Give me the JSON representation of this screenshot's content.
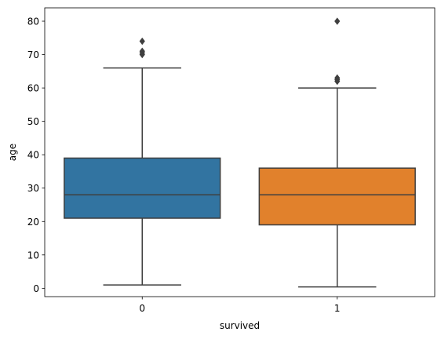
{
  "chart_data": {
    "type": "box",
    "title": "",
    "xlabel": "survived",
    "ylabel": "age",
    "ylim": [
      -2.5,
      84.0
    ],
    "yticks": [
      0,
      10,
      20,
      30,
      40,
      50,
      60,
      70,
      80
    ],
    "grid": false,
    "boxes": [
      {
        "category": "0",
        "color": "#3274a1",
        "whisker_low": 1,
        "q1": 21,
        "median": 28,
        "q3": 39,
        "whisker_high": 66,
        "outliers": [
          70,
          70.5,
          71,
          74
        ]
      },
      {
        "category": "1",
        "color": "#e1812c",
        "whisker_low": 0.42,
        "q1": 19,
        "median": 28,
        "q3": 36,
        "whisker_high": 60,
        "outliers": [
          62,
          62.5,
          63,
          80
        ]
      }
    ]
  }
}
